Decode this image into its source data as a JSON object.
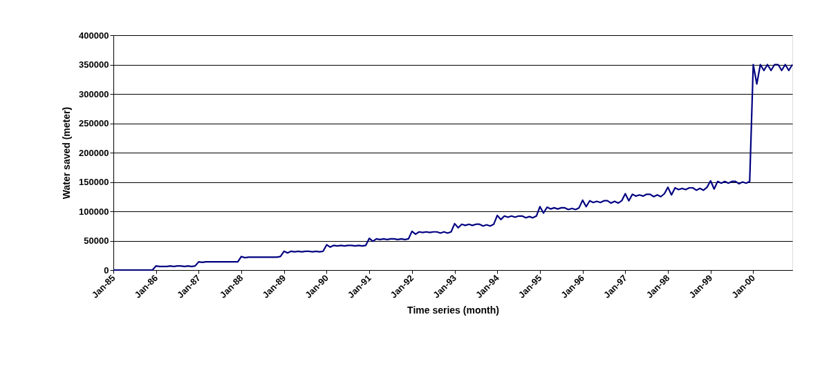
{
  "chart_data": {
    "type": "line",
    "xlabel": "Time series (month)",
    "ylabel": "Water saved (meter)",
    "categories": [
      "Jan-85",
      null,
      null,
      null,
      null,
      null,
      null,
      null,
      null,
      null,
      null,
      null,
      "Jan-86",
      null,
      null,
      null,
      null,
      null,
      null,
      null,
      null,
      null,
      null,
      null,
      "Jan-87",
      null,
      null,
      null,
      null,
      null,
      null,
      null,
      null,
      null,
      null,
      null,
      "Jan-88",
      null,
      null,
      null,
      null,
      null,
      null,
      null,
      null,
      null,
      null,
      null,
      "Jan-89",
      null,
      null,
      null,
      null,
      null,
      null,
      null,
      null,
      null,
      null,
      null,
      "Jan-90",
      null,
      null,
      null,
      null,
      null,
      null,
      null,
      null,
      null,
      null,
      null,
      "Jan-91",
      null,
      null,
      null,
      null,
      null,
      null,
      null,
      null,
      null,
      null,
      null,
      "Jan-92",
      null,
      null,
      null,
      null,
      null,
      null,
      null,
      null,
      null,
      null,
      null,
      "Jan-93",
      null,
      null,
      null,
      null,
      null,
      null,
      null,
      null,
      null,
      null,
      null,
      "Jan-94",
      null,
      null,
      null,
      null,
      null,
      null,
      null,
      null,
      null,
      null,
      null,
      "Jan-95",
      null,
      null,
      null,
      null,
      null,
      null,
      null,
      null,
      null,
      null,
      null,
      "Jan-96",
      null,
      null,
      null,
      null,
      null,
      null,
      null,
      null,
      null,
      null,
      null,
      "Jan-97",
      null,
      null,
      null,
      null,
      null,
      null,
      null,
      null,
      null,
      null,
      null,
      "Jan-98",
      null,
      null,
      null,
      null,
      null,
      null,
      null,
      null,
      null,
      null,
      null,
      "Jan-99",
      null,
      null,
      null,
      null,
      null,
      null,
      null,
      null,
      null,
      null,
      null,
      "Jan-00",
      null,
      null,
      null,
      null,
      null,
      null,
      null,
      null,
      null,
      null,
      null
    ],
    "ylim": [
      0,
      400000
    ],
    "yticks": [
      0,
      50000,
      100000,
      150000,
      200000,
      250000,
      300000,
      350000,
      400000
    ],
    "grid": "y",
    "marker": "none",
    "line_style": "solid",
    "series": [
      {
        "color": "#000080",
        "values": [
          0,
          0,
          0,
          0,
          0,
          0,
          0,
          0,
          0,
          0,
          0,
          0,
          7000,
          6000,
          6000,
          6000,
          7000,
          6000,
          7000,
          7000,
          6000,
          7000,
          6000,
          7000,
          14000,
          13000,
          14000,
          14000,
          14000,
          14000,
          14000,
          14000,
          14000,
          14000,
          14000,
          14000,
          23000,
          21000,
          22000,
          22000,
          22000,
          22000,
          22000,
          22000,
          22000,
          22000,
          22000,
          23000,
          32000,
          29000,
          32000,
          31000,
          32000,
          31000,
          32000,
          32000,
          31000,
          32000,
          31000,
          32000,
          43000,
          39000,
          42000,
          41000,
          42000,
          41000,
          42000,
          42000,
          41000,
          42000,
          41000,
          42000,
          54000,
          49000,
          53000,
          52000,
          53000,
          52000,
          53000,
          53000,
          52000,
          53000,
          52000,
          53000,
          66000,
          61000,
          65000,
          64000,
          65000,
          64000,
          65000,
          65000,
          63000,
          65000,
          63000,
          65000,
          79000,
          72000,
          78000,
          76000,
          78000,
          76000,
          78000,
          78000,
          75000,
          77000,
          75000,
          78000,
          93000,
          86000,
          92000,
          90000,
          92000,
          90000,
          92000,
          92000,
          89000,
          91000,
          89000,
          92000,
          108000,
          97000,
          107000,
          104000,
          106000,
          104000,
          106000,
          106000,
          103000,
          105000,
          103000,
          106000,
          119000,
          108000,
          118000,
          115000,
          117000,
          115000,
          118000,
          118000,
          114000,
          117000,
          114000,
          118000,
          130000,
          118000,
          129000,
          126000,
          128000,
          126000,
          129000,
          129000,
          125000,
          128000,
          125000,
          130000,
          141000,
          128000,
          140000,
          137000,
          139000,
          137000,
          140000,
          140000,
          136000,
          139000,
          136000,
          141000,
          152000,
          138000,
          151000,
          148000,
          151000,
          148000,
          151000,
          151000,
          147000,
          150000,
          148000,
          151000,
          350000,
          317000,
          350000,
          340000,
          350000,
          340000,
          350000,
          350000,
          340000,
          350000,
          340000,
          350000
        ]
      }
    ]
  }
}
